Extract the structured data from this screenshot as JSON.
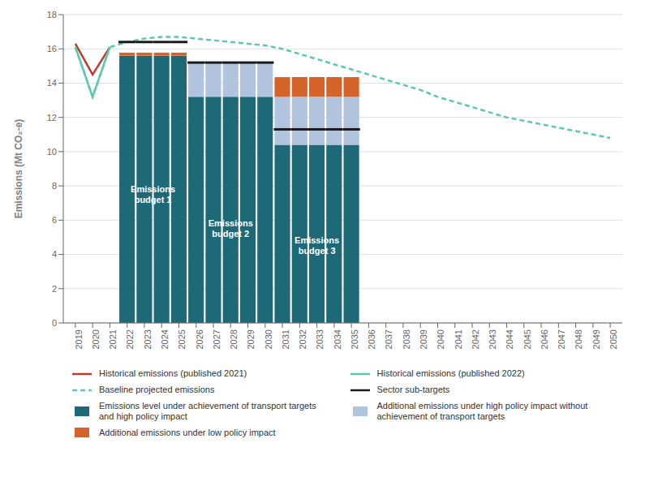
{
  "chart_data": {
    "type": "bar",
    "stacked": true,
    "grid": true,
    "legend": "bottom",
    "ylabel": "Emissions (Mt CO₂-e)",
    "x": [
      2019,
      2020,
      2021,
      2022,
      2023,
      2024,
      2025,
      2026,
      2027,
      2028,
      2029,
      2030,
      2031,
      2032,
      2033,
      2034,
      2035,
      2036,
      2037,
      2038,
      2039,
      2040,
      2041,
      2042,
      2043,
      2044,
      2045,
      2046,
      2047,
      2048,
      2049,
      2050
    ],
    "xlim": [
      2018.3,
      2050.7
    ],
    "xticks": [
      2019,
      2020,
      2021,
      2022,
      2023,
      2024,
      2025,
      2026,
      2027,
      2028,
      2029,
      2030,
      2031,
      2032,
      2033,
      2034,
      2035,
      2036,
      2037,
      2038,
      2039,
      2040,
      2041,
      2042,
      2043,
      2044,
      2045,
      2046,
      2047,
      2048,
      2049,
      2050
    ],
    "ylim": [
      0,
      18
    ],
    "yticks": [
      0,
      2,
      4,
      6,
      8,
      10,
      12,
      14,
      16,
      18
    ],
    "series": [
      {
        "name": "Historical emissions (published 2021)",
        "type": "line",
        "color": "#c0392b",
        "line_style": "solid",
        "values": [
          16.3,
          14.5,
          16.1,
          null,
          null,
          null,
          null,
          null,
          null,
          null,
          null,
          null,
          null,
          null,
          null,
          null,
          null,
          null,
          null,
          null,
          null,
          null,
          null,
          null,
          null,
          null,
          null,
          null,
          null,
          null,
          null,
          null
        ]
      },
      {
        "name": "Historical emissions (published 2022)",
        "type": "line",
        "color": "#5dc8b0",
        "line_style": "solid",
        "values": [
          16.1,
          13.2,
          16.1,
          null,
          null,
          null,
          null,
          null,
          null,
          null,
          null,
          null,
          null,
          null,
          null,
          null,
          null,
          null,
          null,
          null,
          null,
          null,
          null,
          null,
          null,
          null,
          null,
          null,
          null,
          null,
          null,
          null
        ]
      },
      {
        "name": "Baseline projected emissions",
        "type": "line",
        "color": "#5dc8b0",
        "line_style": "dashed",
        "values": [
          16.1,
          13.2,
          16.1,
          16.4,
          16.6,
          16.7,
          16.7,
          16.6,
          16.5,
          16.4,
          16.3,
          16.2,
          16.0,
          15.7,
          15.4,
          15.1,
          14.8,
          14.5,
          14.2,
          13.9,
          13.6,
          13.2,
          12.9,
          12.6,
          12.3,
          12.0,
          11.8,
          11.6,
          11.4,
          11.2,
          11.0,
          10.8
        ]
      },
      {
        "name": "Sector sub-targets",
        "type": "line",
        "color": "#1a1a1a",
        "line_style": "none",
        "marker": "hline",
        "values": [
          null,
          null,
          null,
          16.4,
          16.4,
          16.4,
          16.4,
          15.2,
          15.2,
          15.2,
          15.2,
          15.2,
          11.3,
          11.3,
          11.3,
          11.3,
          11.3,
          null,
          null,
          null,
          null,
          null,
          null,
          null,
          null,
          null,
          null,
          null,
          null,
          null,
          null,
          null
        ]
      },
      {
        "name": "Emissions level under achievement of transport targets\nand high policy impact",
        "type": "bar",
        "color": "#1e6978",
        "values": [
          null,
          null,
          null,
          15.6,
          15.6,
          15.6,
          15.6,
          13.2,
          13.2,
          13.2,
          13.2,
          13.2,
          10.4,
          10.4,
          10.4,
          10.4,
          10.4,
          null,
          null,
          null,
          null,
          null,
          null,
          null,
          null,
          null,
          null,
          null,
          null,
          null,
          null,
          null
        ]
      },
      {
        "name": "Additional emissions under high policy impact without\nachievement of transport targets",
        "type": "bar",
        "color": "#b0c4de",
        "values": [
          null,
          null,
          null,
          null,
          null,
          null,
          null,
          2.0,
          2.0,
          2.0,
          2.0,
          2.0,
          2.8,
          2.8,
          2.8,
          2.8,
          2.8,
          null,
          null,
          null,
          null,
          null,
          null,
          null,
          null,
          null,
          null,
          null,
          null,
          null,
          null,
          null
        ]
      },
      {
        "name": "Additional emissions under low policy impact",
        "type": "bar",
        "color": "#d4632a",
        "values": [
          null,
          null,
          null,
          0.18,
          0.18,
          0.18,
          0.18,
          null,
          null,
          null,
          null,
          null,
          1.15,
          1.15,
          1.15,
          1.15,
          1.15,
          null,
          null,
          null,
          null,
          null,
          null,
          null,
          null,
          null,
          null,
          null,
          null,
          null,
          null,
          null
        ]
      }
    ],
    "annotations": [
      {
        "text": "Emissions\nbudget 1",
        "x": 2023.5,
        "y": 7.5
      },
      {
        "text": "Emissions\nbudget 2",
        "x": 2028.0,
        "y": 5.5
      },
      {
        "text": "Emissions\nbudget 3",
        "x": 2033.0,
        "y": 4.5
      }
    ]
  }
}
